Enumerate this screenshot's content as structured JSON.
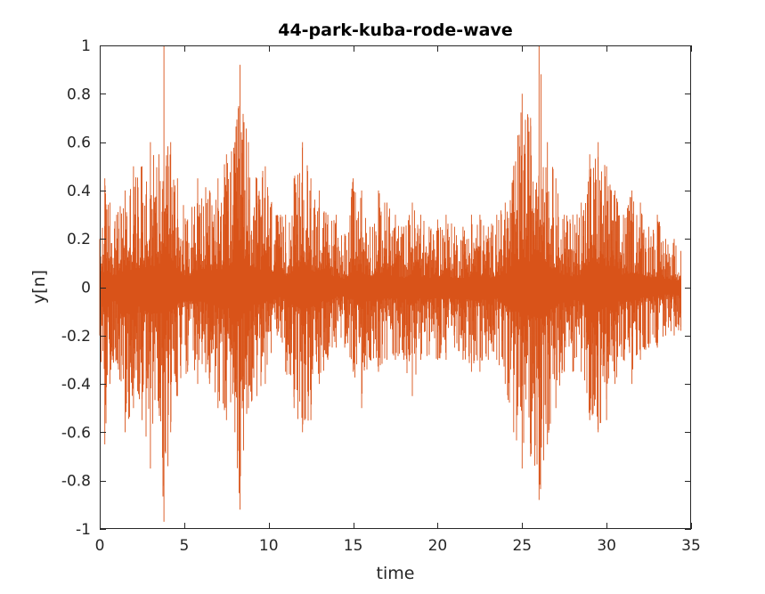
{
  "chart_data": {
    "type": "line",
    "title": "44-park-kuba-rode-wave",
    "xlabel": "time",
    "ylabel": "y[n]",
    "xlim": [
      0,
      35
    ],
    "ylim": [
      -1,
      1
    ],
    "xticks": [
      0,
      5,
      10,
      15,
      20,
      25,
      30,
      35
    ],
    "xtick_labels": [
      "0",
      "5",
      "10",
      "15",
      "20",
      "25",
      "30",
      "35"
    ],
    "yticks": [
      -1,
      -0.8,
      -0.6,
      -0.4,
      -0.2,
      0,
      0.2,
      0.4,
      0.6,
      0.8,
      1
    ],
    "ytick_labels": [
      "-1",
      "-0.8",
      "-0.6",
      "-0.4",
      "-0.2",
      "0",
      "0.2",
      "0.4",
      "0.6",
      "0.8",
      "1"
    ],
    "grid": false,
    "series": [
      {
        "color": "#D95319",
        "x_range": [
          0,
          34.4
        ],
        "envelope": {
          "t": [
            0,
            0.3,
            0.6,
            1.0,
            1.5,
            2.0,
            2.5,
            3.0,
            3.5,
            3.8,
            4.2,
            4.6,
            5.2,
            5.8,
            6.5,
            7.0,
            7.5,
            8.0,
            8.3,
            8.8,
            9.3,
            9.8,
            10.5,
            11.0,
            11.5,
            12.0,
            12.5,
            13.0,
            13.5,
            14.0,
            14.5,
            15.0,
            15.5,
            16.0,
            16.5,
            17.0,
            17.5,
            18.0,
            18.5,
            19.0,
            19.5,
            20.0,
            20.5,
            21.0,
            21.5,
            22.0,
            22.5,
            23.0,
            23.5,
            24.0,
            24.5,
            25.0,
            25.5,
            26.0,
            26.5,
            27.0,
            27.5,
            28.0,
            28.5,
            29.0,
            29.5,
            30.0,
            30.5,
            31.0,
            31.5,
            32.0,
            32.5,
            33.0,
            33.5,
            34.0,
            34.4
          ],
          "upper": [
            0.2,
            0.45,
            0.35,
            0.3,
            0.4,
            0.5,
            0.5,
            0.6,
            0.55,
            1.0,
            0.6,
            0.45,
            0.28,
            0.45,
            0.4,
            0.45,
            0.55,
            0.6,
            0.92,
            0.6,
            0.45,
            0.5,
            0.3,
            0.3,
            0.45,
            0.6,
            0.45,
            0.4,
            0.3,
            0.3,
            0.22,
            0.45,
            0.4,
            0.25,
            0.4,
            0.35,
            0.3,
            0.25,
            0.35,
            0.3,
            0.25,
            0.28,
            0.3,
            0.25,
            0.25,
            0.3,
            0.3,
            0.25,
            0.3,
            0.35,
            0.5,
            0.8,
            0.7,
            1.0,
            0.6,
            0.45,
            0.3,
            0.3,
            0.35,
            0.55,
            0.6,
            0.5,
            0.4,
            0.3,
            0.4,
            0.35,
            0.25,
            0.3,
            0.2,
            0.2,
            0.15
          ],
          "lower": [
            -0.2,
            -0.65,
            -0.4,
            -0.3,
            -0.6,
            -0.5,
            -0.55,
            -0.75,
            -0.5,
            -0.97,
            -0.6,
            -0.45,
            -0.35,
            -0.4,
            -0.4,
            -0.5,
            -0.55,
            -0.6,
            -0.92,
            -0.5,
            -0.45,
            -0.4,
            -0.2,
            -0.35,
            -0.5,
            -0.6,
            -0.55,
            -0.4,
            -0.3,
            -0.25,
            -0.25,
            -0.35,
            -0.5,
            -0.3,
            -0.35,
            -0.3,
            -0.3,
            -0.3,
            -0.45,
            -0.3,
            -0.28,
            -0.3,
            -0.3,
            -0.25,
            -0.3,
            -0.35,
            -0.35,
            -0.3,
            -0.3,
            -0.4,
            -0.6,
            -0.75,
            -0.7,
            -0.88,
            -0.65,
            -0.5,
            -0.35,
            -0.35,
            -0.35,
            -0.55,
            -0.6,
            -0.55,
            -0.4,
            -0.3,
            -0.4,
            -0.3,
            -0.25,
            -0.25,
            -0.2,
            -0.2,
            -0.18
          ]
        }
      }
    ]
  }
}
